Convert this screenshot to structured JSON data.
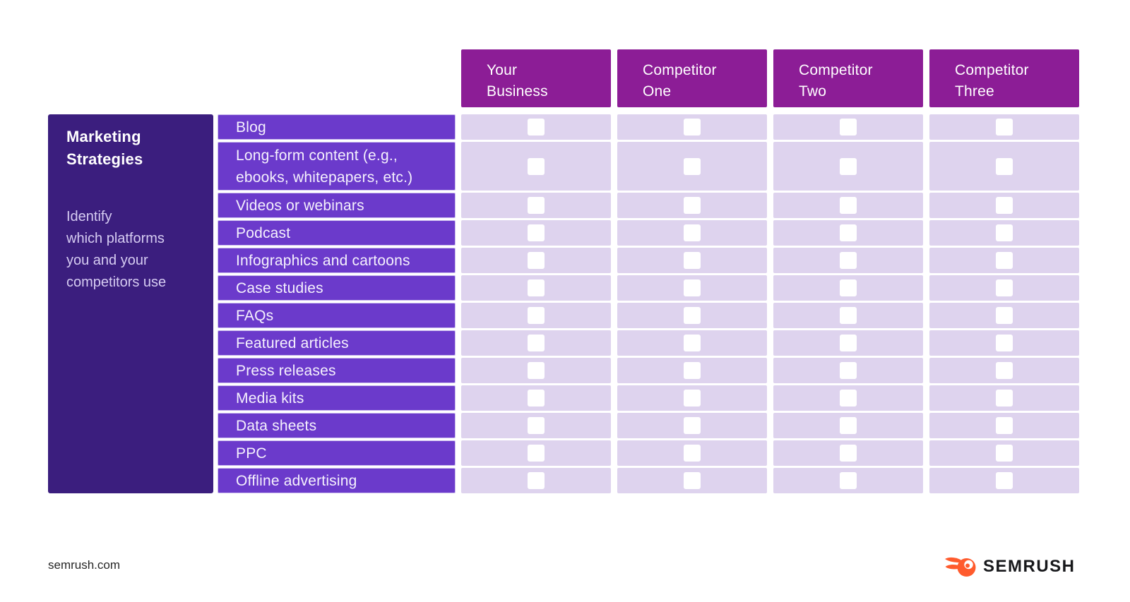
{
  "colors": {
    "page_bg": "#ffffff",
    "header_bg": "#8c1d96",
    "sidebar_bg": "#3b1e7e",
    "row_label_bg": "#6b3acb",
    "cell_bg": "#ded3ee",
    "checkbox_bg": "#ffffff",
    "brand_orange": "#ff5b2d",
    "brand_text": "#17181b"
  },
  "sidebar": {
    "title_lines": [
      "Marketing",
      "Strategies"
    ],
    "description_lines": [
      "Identify",
      "which platforms",
      "you and your",
      "competitors use"
    ]
  },
  "table": {
    "columns": [
      {
        "label_lines": [
          "Your",
          "Business"
        ]
      },
      {
        "label_lines": [
          "Competitor",
          "One"
        ]
      },
      {
        "label_lines": [
          "Competitor",
          "Two"
        ]
      },
      {
        "label_lines": [
          "Competitor",
          "Three"
        ]
      }
    ],
    "rows": [
      {
        "lines": [
          "Blog"
        ],
        "checks": [
          false,
          false,
          false,
          false
        ]
      },
      {
        "lines": [
          "Long-form content (e.g.,",
          "ebooks, whitepapers, etc.)"
        ],
        "checks": [
          false,
          false,
          false,
          false
        ]
      },
      {
        "lines": [
          "Videos or webinars"
        ],
        "checks": [
          false,
          false,
          false,
          false
        ]
      },
      {
        "lines": [
          "Podcast"
        ],
        "checks": [
          false,
          false,
          false,
          false
        ]
      },
      {
        "lines": [
          "Infographics and cartoons"
        ],
        "checks": [
          false,
          false,
          false,
          false
        ]
      },
      {
        "lines": [
          "Case studies"
        ],
        "checks": [
          false,
          false,
          false,
          false
        ]
      },
      {
        "lines": [
          "FAQs"
        ],
        "checks": [
          false,
          false,
          false,
          false
        ]
      },
      {
        "lines": [
          "Featured articles"
        ],
        "checks": [
          false,
          false,
          false,
          false
        ]
      },
      {
        "lines": [
          "Press releases"
        ],
        "checks": [
          false,
          false,
          false,
          false
        ]
      },
      {
        "lines": [
          "Media kits"
        ],
        "checks": [
          false,
          false,
          false,
          false
        ]
      },
      {
        "lines": [
          "Data sheets"
        ],
        "checks": [
          false,
          false,
          false,
          false
        ]
      },
      {
        "lines": [
          "PPC"
        ],
        "checks": [
          false,
          false,
          false,
          false
        ]
      },
      {
        "lines": [
          "Offline advertising"
        ],
        "checks": [
          false,
          false,
          false,
          false
        ]
      }
    ]
  },
  "footer": {
    "site": "semrush.com",
    "brand": "SEMRUSH"
  }
}
